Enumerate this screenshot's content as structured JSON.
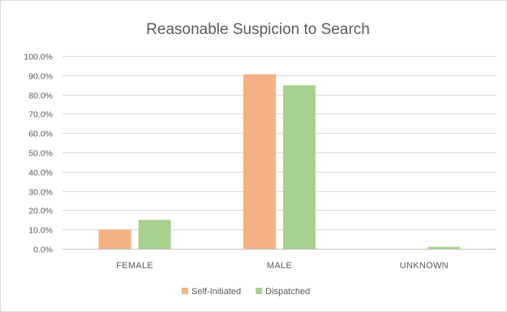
{
  "chart_data": {
    "type": "bar",
    "title": "Reasonable Suspicion to Search",
    "categories": [
      "FEMALE",
      "MALE",
      "UNKNOWN"
    ],
    "series": [
      {
        "name": "Self-Initiated",
        "values": [
          10.0,
          90.5,
          0.0
        ],
        "color": "#f4b183"
      },
      {
        "name": "Dispatched",
        "values": [
          15.0,
          84.8,
          1.0
        ],
        "color": "#a9d18e"
      }
    ],
    "ylim": [
      0,
      100
    ],
    "yticks": [
      "0.0%",
      "10.0%",
      "20.0%",
      "30.0%",
      "40.0%",
      "50.0%",
      "60.0%",
      "70.0%",
      "80.0%",
      "90.0%",
      "100.0%"
    ],
    "grid": true,
    "legend": "bottom"
  }
}
